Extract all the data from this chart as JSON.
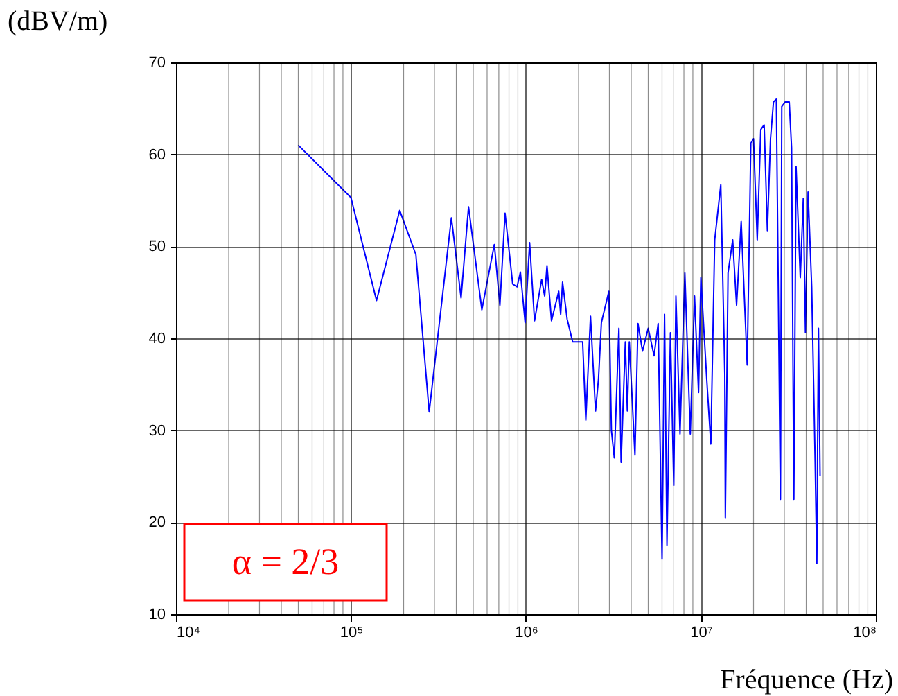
{
  "chart_data": {
    "type": "line",
    "xlabel": "Fréquence (Hz)",
    "ylabel": "(dBV/m)",
    "annotations": [
      "α = 2/3"
    ],
    "x": [
      50000,
      100000,
      140000,
      190000,
      235000,
      280000,
      375000,
      426000,
      470000,
      560000,
      660000,
      710000,
      760000,
      840000,
      890000,
      930000,
      990000,
      1050000,
      1120000,
      1230000,
      1280000,
      1320000,
      1400000,
      1540000,
      1580000,
      1620000,
      1720000,
      1850000,
      1970000,
      2110000,
      2200000,
      2340000,
      2500000,
      2600000,
      2700000,
      2980000,
      3080000,
      3200000,
      3400000,
      3500000,
      3700000,
      3800000,
      3900000,
      4200000,
      4370000,
      4640000,
      5000000,
      5400000,
      5700000,
      6000000,
      6200000,
      6400000,
      6700000,
      7000000,
      7200000,
      7600000,
      8100000,
      8700000,
      9200000,
      9700000,
      10000000,
      10800000,
      11400000,
      12000000,
      13000000,
      13700000,
      13800000,
      14300000,
      15200000,
      16000000,
      17000000,
      18400000,
      19300000,
      20000000,
      21000000,
      22000000,
      23000000,
      24000000,
      25000000,
      26000000,
      27000000,
      28500000,
      29000000,
      30300000,
      32000000,
      33000000,
      34000000,
      35000000,
      37000000,
      38500000,
      39600000,
      41000000,
      43000000,
      45000000,
      46000000,
      47000000,
      48000000
    ],
    "values": [
      61,
      55.3,
      44.1,
      53.9,
      49.1,
      32,
      53.1,
      44.4,
      54.3,
      43.1,
      50.2,
      43.6,
      53.6,
      45.9,
      45.6,
      47.2,
      41.7,
      50.4,
      41.9,
      46.4,
      44.6,
      47.9,
      41.9,
      45.1,
      42.6,
      46.1,
      42.1,
      39.6,
      39.6,
      39.6,
      31.1,
      42.4,
      32.1,
      35.6,
      41.7,
      45.1,
      30,
      27,
      41.1,
      26.5,
      39.6,
      32.1,
      39.6,
      27.3,
      41.6,
      38.6,
      41.1,
      38.1,
      41.6,
      16,
      42.6,
      17.5,
      40.6,
      24,
      44.6,
      29.6,
      47.1,
      29.6,
      44.6,
      34.1,
      46.6,
      35.6,
      28.5,
      50.7,
      56.7,
      36.1,
      20.5,
      47.1,
      50.7,
      43.6,
      52.7,
      37.1,
      61.2,
      61.7,
      50.7,
      62.7,
      63.2,
      51.7,
      61.7,
      65.7,
      66,
      22.5,
      65.2,
      65.7,
      65.7,
      60.7,
      22.5,
      58.7,
      46.6,
      55.2,
      40.6,
      55.9,
      45.6,
      26.5,
      15.5,
      41.1,
      25
    ],
    "color": "#0000ff",
    "line_style": "solid",
    "marker": "none",
    "log": "x",
    "grid": true,
    "xlim": [
      10000,
      100000000
    ],
    "xticks": [
      {
        "value": 10000,
        "label": "10⁴"
      },
      {
        "value": 100000,
        "label": "10⁵"
      },
      {
        "value": 1000000,
        "label": "10⁶"
      },
      {
        "value": 10000000,
        "label": "10⁷"
      },
      {
        "value": 100000000,
        "label": "10⁸"
      }
    ],
    "ylim": [
      10,
      70
    ],
    "yticks": [
      10,
      20,
      30,
      40,
      50,
      60,
      70
    ]
  }
}
